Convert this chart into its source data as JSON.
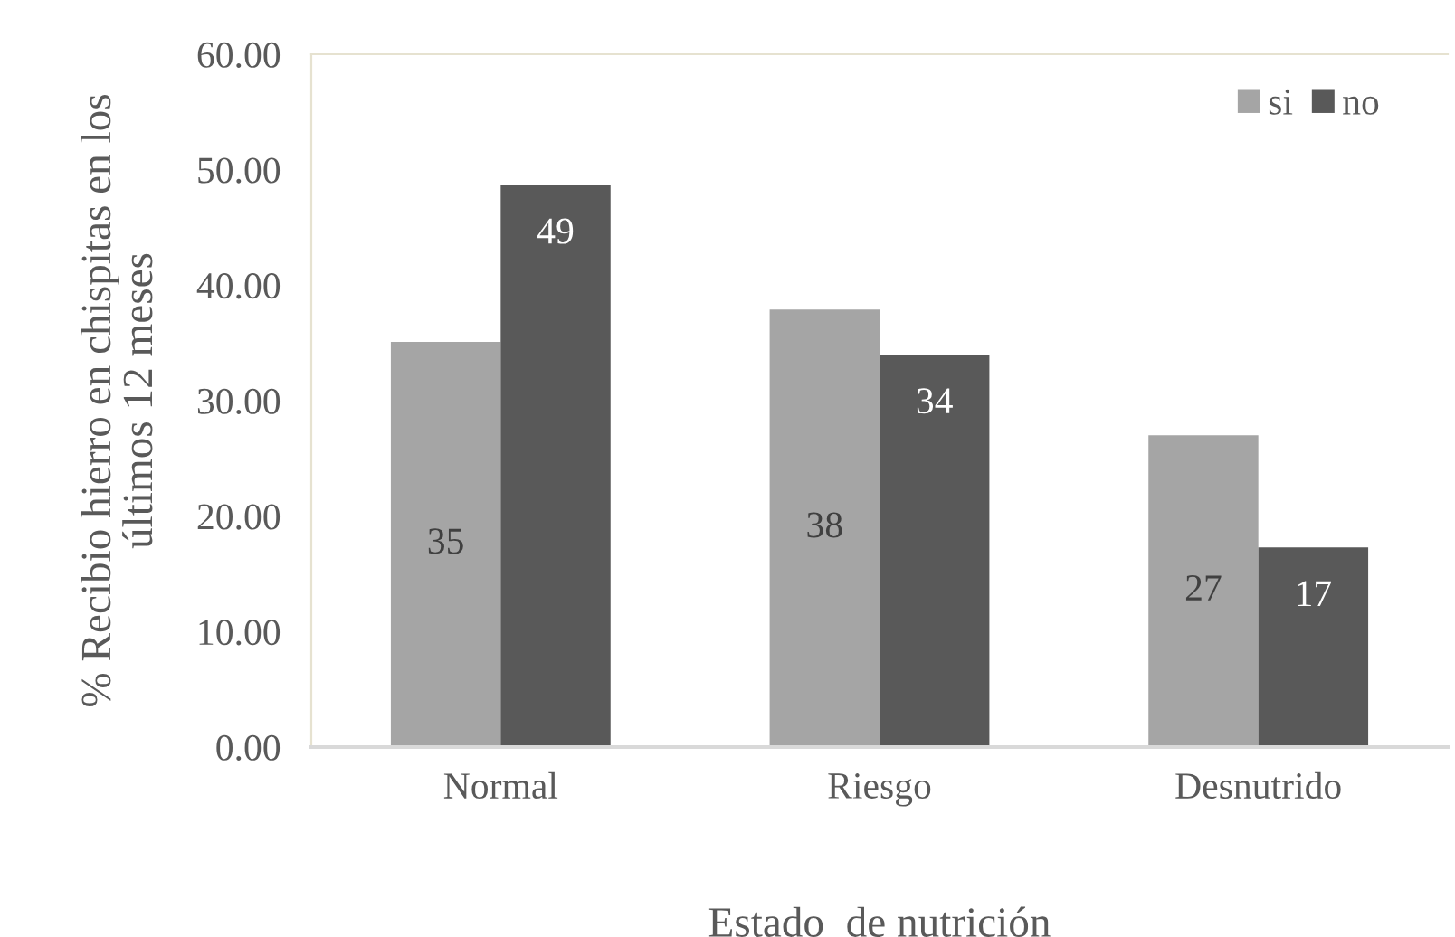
{
  "chart_data": {
    "type": "bar",
    "xlabel": "Estado  de nutrición",
    "ylabel": "% Recibio hierro en chispitas en los\núltimos 12 meses",
    "categories": [
      "Normal",
      "Riesgo",
      "Desnutrido"
    ],
    "series": [
      {
        "name": "si",
        "color": "#a5a5a5",
        "values": [
          35.1,
          37.9,
          27.0
        ],
        "value_labels": [
          "35",
          "38",
          "27"
        ]
      },
      {
        "name": "no",
        "color": "#595959",
        "values": [
          48.7,
          34.0,
          17.3
        ],
        "value_labels": [
          "49",
          "34",
          "17"
        ]
      }
    ],
    "ylim": [
      0,
      60
    ],
    "yticks": [
      {
        "value": 0,
        "label": "0.00"
      },
      {
        "value": 10,
        "label": "10.00"
      },
      {
        "value": 20,
        "label": "20.00"
      },
      {
        "value": 30,
        "label": "30.00"
      },
      {
        "value": 40,
        "label": "40.00"
      },
      {
        "value": 50,
        "label": "50.00"
      },
      {
        "value": 60,
        "label": "60.00"
      }
    ],
    "grid": false,
    "legend": "top right"
  }
}
